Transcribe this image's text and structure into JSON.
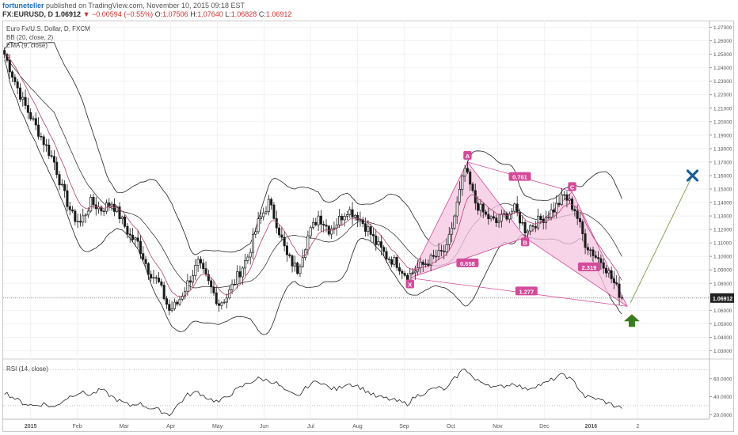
{
  "header": {
    "author": "fortuneteller",
    "published": "published on TradingView.com, November 10, 2015 09:18 EST",
    "symbol": "FX:EURUSD, D",
    "last": "1.06912",
    "change": "−0.00594 (−0.55%)",
    "open_label": "O:",
    "open": "1.07506",
    "high_label": "H:",
    "high": "1.07640",
    "low_label": "L:",
    "low": "1.06828",
    "close_label": "C:",
    "close": "1.06912"
  },
  "legend": {
    "instrument": "Euro Fx/U.S. Dollar, D, FXCM",
    "bb": "BB (20, close, 2)",
    "ema": "EMA (9, close)",
    "rsi": "RSI (14, close)"
  },
  "colors": {
    "candle": "#1a1a1a",
    "bollinger": "#222222",
    "ema": "#b04070",
    "pattern": "#d44a9a",
    "pattern_fill": "#f6c6e2",
    "projection": "#7a9a4a",
    "target_x": "#1a5e9a",
    "arrow_up": "#3a7a20",
    "price_tag": "#222222"
  },
  "chart_data": {
    "type": "candlestick",
    "price_axis": {
      "ticks": [
        "1.27000",
        "1.26000",
        "1.25000",
        "1.24000",
        "1.23000",
        "1.22000",
        "1.21000",
        "1.20000",
        "1.19000",
        "1.18000",
        "1.17000",
        "1.16000",
        "1.15000",
        "1.14000",
        "1.13000",
        "1.12000",
        "1.11000",
        "1.10000",
        "1.09000",
        "1.08000",
        "1.07000",
        "1.06000",
        "1.05000",
        "1.04000",
        "1.03000"
      ],
      "range": [
        1.025,
        1.275
      ],
      "current_price": "1.06912"
    },
    "time_axis": [
      "2015",
      "Feb",
      "Mar",
      "Apr",
      "May",
      "Jun",
      "Jul",
      "Aug",
      "Sep",
      "Oct",
      "Nov",
      "Dec",
      "2016",
      "2"
    ],
    "price_anchors": [
      [
        0,
        1.25
      ],
      [
        4,
        1.23
      ],
      [
        7,
        1.215
      ],
      [
        11,
        1.2
      ],
      [
        15,
        1.185
      ],
      [
        19,
        1.17
      ],
      [
        22,
        1.15
      ],
      [
        26,
        1.13
      ],
      [
        29,
        1.125
      ],
      [
        33,
        1.14
      ],
      [
        37,
        1.135
      ],
      [
        41,
        1.14
      ],
      [
        44,
        1.13
      ],
      [
        48,
        1.115
      ],
      [
        51,
        1.11
      ],
      [
        55,
        1.09
      ],
      [
        59,
        1.08
      ],
      [
        63,
        1.06
      ],
      [
        66,
        1.065
      ],
      [
        70,
        1.08
      ],
      [
        74,
        1.095
      ],
      [
        78,
        1.08
      ],
      [
        82,
        1.065
      ],
      [
        85,
        1.07
      ],
      [
        89,
        1.085
      ],
      [
        93,
        1.1
      ],
      [
        97,
        1.125
      ],
      [
        101,
        1.14
      ],
      [
        104,
        1.125
      ],
      [
        108,
        1.1
      ],
      [
        112,
        1.09
      ],
      [
        116,
        1.115
      ],
      [
        120,
        1.13
      ],
      [
        124,
        1.12
      ],
      [
        127,
        1.125
      ],
      [
        131,
        1.135
      ],
      [
        135,
        1.13
      ],
      [
        139,
        1.12
      ],
      [
        142,
        1.11
      ],
      [
        146,
        1.1
      ],
      [
        150,
        1.095
      ],
      [
        154,
        1.085
      ],
      [
        157,
        1.09
      ],
      [
        161,
        1.095
      ],
      [
        165,
        1.1
      ],
      [
        169,
        1.105
      ],
      [
        172,
        1.13
      ],
      [
        176,
        1.165
      ],
      [
        180,
        1.14
      ],
      [
        184,
        1.13
      ],
      [
        188,
        1.125
      ],
      [
        191,
        1.13
      ],
      [
        195,
        1.135
      ],
      [
        199,
        1.12
      ],
      [
        203,
        1.125
      ],
      [
        207,
        1.13
      ],
      [
        210,
        1.135
      ],
      [
        214,
        1.145
      ],
      [
        218,
        1.135
      ],
      [
        222,
        1.11
      ],
      [
        226,
        1.1
      ],
      [
        229,
        1.095
      ],
      [
        233,
        1.08
      ],
      [
        236,
        1.069
      ]
    ],
    "rsi": {
      "levels": [
        "60.0000",
        "40.0000",
        "20.0000"
      ],
      "guides": [
        70,
        30
      ],
      "range": [
        15,
        80
      ],
      "anchors": [
        [
          0,
          45
        ],
        [
          4,
          38
        ],
        [
          7,
          33
        ],
        [
          11,
          30
        ],
        [
          15,
          32
        ],
        [
          19,
          28
        ],
        [
          22,
          35
        ],
        [
          26,
          42
        ],
        [
          29,
          45
        ],
        [
          33,
          42
        ],
        [
          37,
          48
        ],
        [
          41,
          40
        ],
        [
          44,
          35
        ],
        [
          48,
          30
        ],
        [
          51,
          33
        ],
        [
          55,
          28
        ],
        [
          59,
          25
        ],
        [
          63,
          20
        ],
        [
          66,
          30
        ],
        [
          70,
          42
        ],
        [
          74,
          45
        ],
        [
          78,
          38
        ],
        [
          82,
          34
        ],
        [
          85,
          40
        ],
        [
          89,
          48
        ],
        [
          93,
          55
        ],
        [
          97,
          60
        ],
        [
          101,
          58
        ],
        [
          104,
          55
        ],
        [
          108,
          45
        ],
        [
          112,
          40
        ],
        [
          116,
          52
        ],
        [
          120,
          58
        ],
        [
          124,
          50
        ],
        [
          127,
          48
        ],
        [
          131,
          55
        ],
        [
          135,
          52
        ],
        [
          139,
          45
        ],
        [
          142,
          40
        ],
        [
          146,
          38
        ],
        [
          150,
          35
        ],
        [
          154,
          32
        ],
        [
          157,
          40
        ],
        [
          161,
          45
        ],
        [
          165,
          50
        ],
        [
          169,
          48
        ],
        [
          172,
          60
        ],
        [
          176,
          72
        ],
        [
          180,
          58
        ],
        [
          184,
          55
        ],
        [
          188,
          50
        ],
        [
          191,
          52
        ],
        [
          195,
          55
        ],
        [
          199,
          48
        ],
        [
          203,
          52
        ],
        [
          207,
          55
        ],
        [
          210,
          60
        ],
        [
          214,
          65
        ],
        [
          218,
          55
        ],
        [
          222,
          40
        ],
        [
          226,
          38
        ],
        [
          229,
          35
        ],
        [
          233,
          30
        ],
        [
          236,
          28
        ]
      ]
    },
    "harmonic_pattern": {
      "points": {
        "X": [
          155,
          1.084
        ],
        "A": [
          177,
          1.17
        ],
        "B": [
          199,
          1.114
        ],
        "C": [
          217,
          1.148
        ],
        "D": [
          238,
          1.063
        ]
      },
      "labels": {
        "X": "X",
        "A": "A",
        "B": "B",
        "C": "C"
      },
      "ratios": {
        "XB": "0.658",
        "AC": "0.761",
        "BD": "2.319",
        "XD": "1.277"
      }
    },
    "projection": {
      "target": [
        263,
        1.16
      ]
    }
  }
}
